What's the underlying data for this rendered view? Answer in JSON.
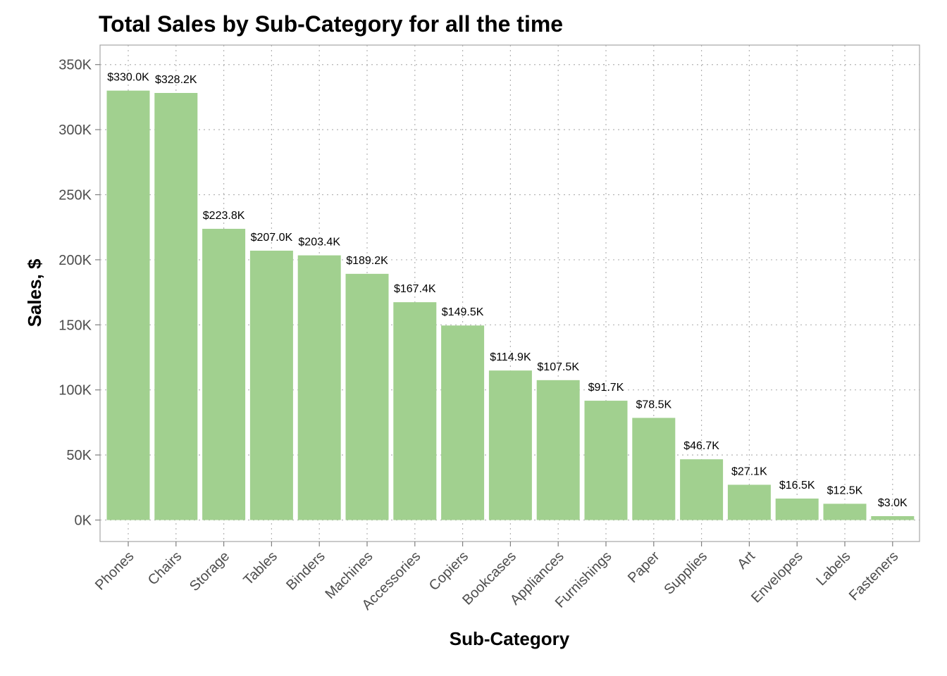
{
  "chart_data": {
    "type": "bar",
    "title": "Total Sales by Sub-Category for all the time",
    "xlabel": "Sub-Category",
    "ylabel": "Sales, $",
    "categories": [
      "Phones",
      "Chairs",
      "Storage",
      "Tables",
      "Binders",
      "Machines",
      "Accessories",
      "Copiers",
      "Bookcases",
      "Appliances",
      "Furnishings",
      "Paper",
      "Supplies",
      "Art",
      "Envelopes",
      "Labels",
      "Fasteners"
    ],
    "values": [
      330000,
      328200,
      223800,
      207000,
      203400,
      189200,
      167400,
      149500,
      114900,
      107500,
      91700,
      78500,
      46700,
      27100,
      16500,
      12500,
      3000
    ],
    "data_labels": [
      "$330.0K",
      "$328.2K",
      "$223.8K",
      "$207.0K",
      "$203.4K",
      "$189.2K",
      "$167.4K",
      "$149.5K",
      "$114.9K",
      "$107.5K",
      "$91.7K",
      "$78.5K",
      "$46.7K",
      "$27.1K",
      "$16.5K",
      "$12.5K",
      "$3.0K"
    ],
    "yticks": [
      0,
      50000,
      100000,
      150000,
      200000,
      250000,
      300000,
      350000
    ],
    "ytick_labels": [
      "0K",
      "50K",
      "100K",
      "150K",
      "200K",
      "250K",
      "300K",
      "350K"
    ],
    "ylim": [
      -16500,
      365000
    ],
    "grid": true,
    "legend": "none",
    "bar_color": "#a1d08f"
  }
}
